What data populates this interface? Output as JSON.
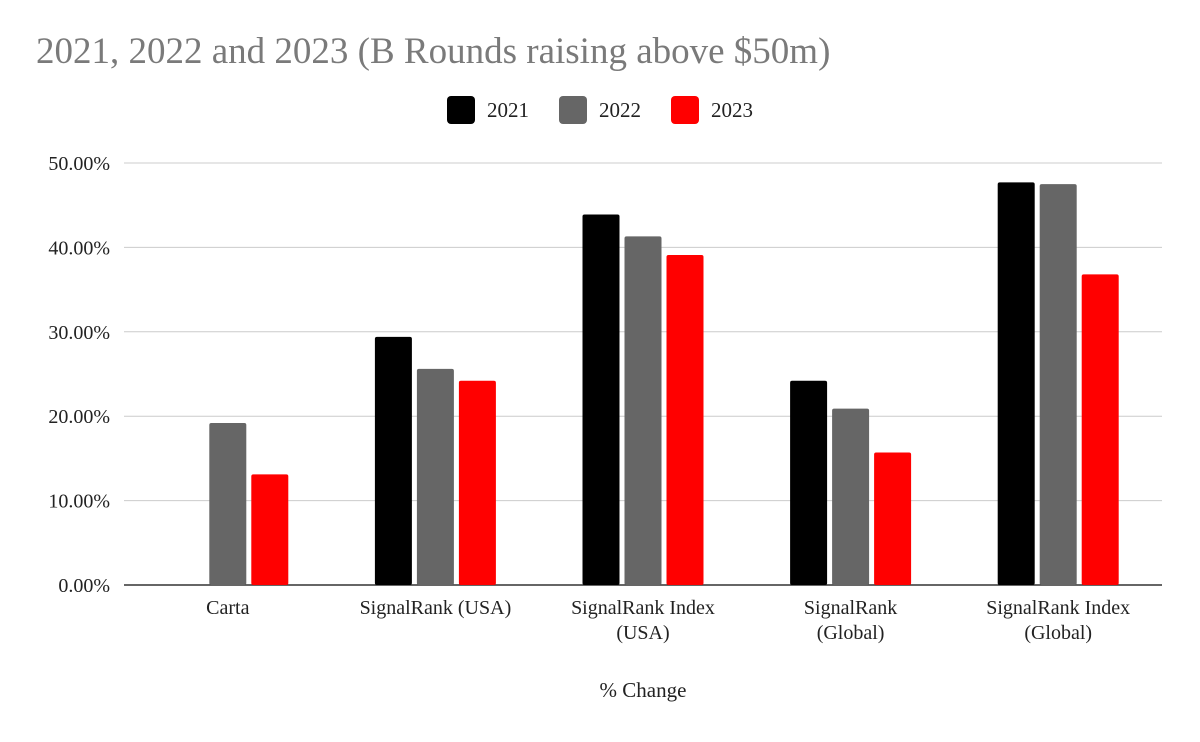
{
  "chart_data": {
    "type": "bar",
    "title": "2021, 2022 and 2023 (B Rounds raising above $50m)",
    "xlabel": "% Change",
    "ylabel": "",
    "ylim": [
      0,
      50
    ],
    "yticks": [
      "0.00%",
      "10.00%",
      "20.00%",
      "30.00%",
      "40.00%",
      "50.00%"
    ],
    "categories": [
      [
        "Carta"
      ],
      [
        "SignalRank (USA)"
      ],
      [
        "SignalRank Index",
        "(USA)"
      ],
      [
        "SignalRank",
        "(Global)"
      ],
      [
        "SignalRank Index",
        "(Global)"
      ]
    ],
    "series": [
      {
        "name": "2021",
        "color": "#000000",
        "values": [
          null,
          29.4,
          43.9,
          24.2,
          47.7
        ]
      },
      {
        "name": "2022",
        "color": "#666666",
        "values": [
          19.2,
          25.6,
          41.3,
          20.9,
          47.5
        ]
      },
      {
        "name": "2023",
        "color": "#ff0000",
        "values": [
          13.1,
          24.2,
          39.1,
          15.7,
          36.8
        ]
      }
    ],
    "grid": true,
    "legend": "top"
  }
}
